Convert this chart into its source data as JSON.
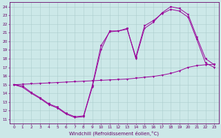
{
  "xlabel": "Windchill (Refroidissement éolien,°C)",
  "bg_color": "#cce8e8",
  "line_color": "#990099",
  "grid_color": "#aacccc",
  "spine_color": "#660066",
  "xlim": [
    -0.5,
    23.5
  ],
  "ylim": [
    10.5,
    24.5
  ],
  "xticks": [
    0,
    1,
    2,
    3,
    4,
    5,
    6,
    7,
    8,
    9,
    10,
    11,
    12,
    13,
    14,
    15,
    16,
    17,
    18,
    19,
    20,
    21,
    22,
    23
  ],
  "yticks": [
    11,
    12,
    13,
    14,
    15,
    16,
    17,
    18,
    19,
    20,
    21,
    22,
    23,
    24
  ],
  "line1_x": [
    0,
    1,
    2,
    3,
    4,
    5,
    6,
    7,
    8,
    9,
    10,
    11,
    12,
    13,
    14,
    15,
    16,
    17,
    18,
    19,
    20,
    21,
    22,
    23
  ],
  "line1_y": [
    15.0,
    14.7,
    14.0,
    13.4,
    12.7,
    12.3,
    11.6,
    11.2,
    11.3,
    14.7,
    19.0,
    21.2,
    21.2,
    21.5,
    18.0,
    21.5,
    22.2,
    23.3,
    24.0,
    23.8,
    23.1,
    20.5,
    18.0,
    17.3
  ],
  "line2_x": [
    0,
    1,
    2,
    3,
    4,
    5,
    6,
    7,
    8,
    9,
    10,
    11,
    12,
    13,
    14,
    15,
    16,
    17,
    18,
    19,
    20,
    21,
    22,
    23
  ],
  "line2_y": [
    15.0,
    14.85,
    14.1,
    13.5,
    12.8,
    12.4,
    11.7,
    11.3,
    11.4,
    14.9,
    19.5,
    21.1,
    21.2,
    21.4,
    18.2,
    21.8,
    22.4,
    23.2,
    23.7,
    23.5,
    22.8,
    20.2,
    17.5,
    17.0
  ],
  "line3_x": [
    0,
    1,
    2,
    3,
    4,
    5,
    6,
    7,
    8,
    9,
    10,
    11,
    12,
    13,
    14,
    15,
    16,
    17,
    18,
    19,
    20,
    21,
    22,
    23
  ],
  "line3_y": [
    15.0,
    15.05,
    15.1,
    15.15,
    15.2,
    15.25,
    15.3,
    15.35,
    15.4,
    15.45,
    15.5,
    15.55,
    15.6,
    15.65,
    15.75,
    15.85,
    15.95,
    16.1,
    16.3,
    16.6,
    17.0,
    17.2,
    17.3,
    17.35
  ]
}
